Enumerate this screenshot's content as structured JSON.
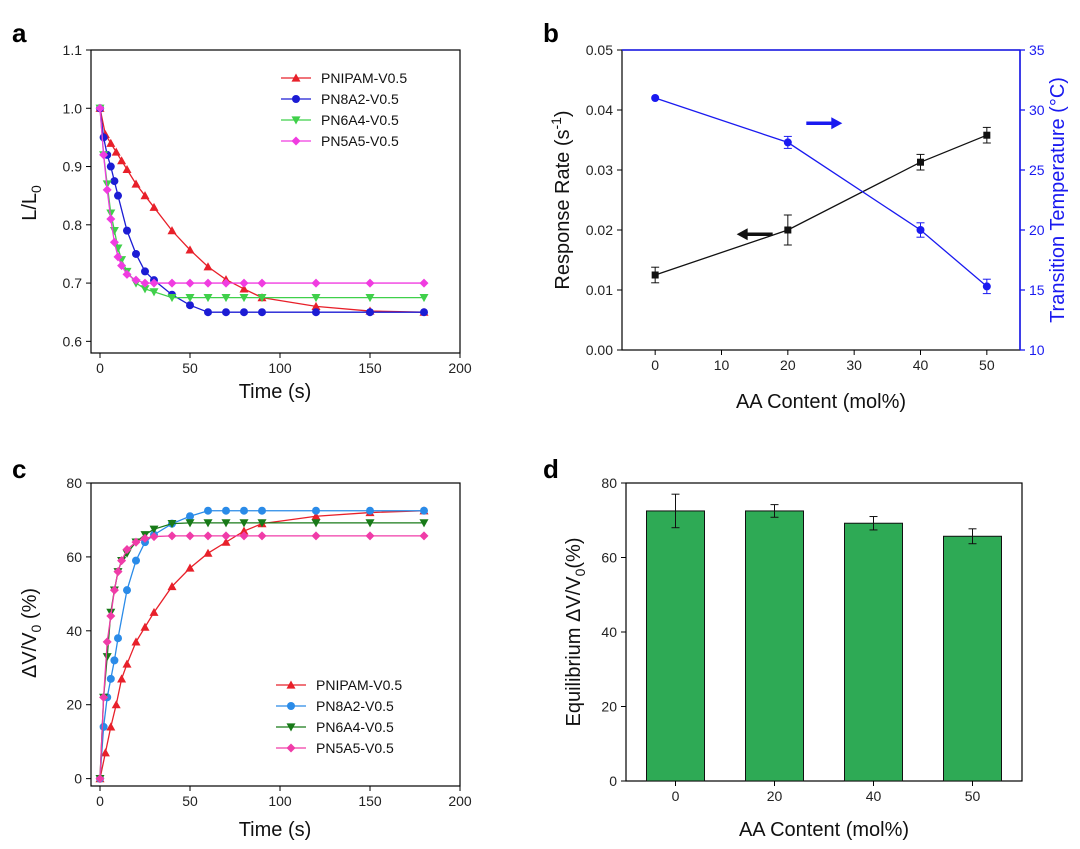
{
  "chart_data": [
    {
      "panel": "a",
      "type": "line",
      "xlabel": "Time (s)",
      "ylabel": "L/L",
      "ylabel_sub": "0",
      "xlim": [
        -5,
        200
      ],
      "ylim": [
        0.58,
        1.1
      ],
      "xticks": [
        0,
        50,
        100,
        150,
        200
      ],
      "yticks": [
        0.6,
        0.7,
        0.8,
        0.9,
        1.0,
        1.1
      ],
      "ytick_labels": [
        "0.6",
        "0.7",
        "0.8",
        "0.9",
        "1.0",
        "1.1"
      ],
      "legend_position": "top-right",
      "series": [
        {
          "name": "PNIPAM-V0.5",
          "color": "#e8202a",
          "marker": "triangle-up",
          "x": [
            0,
            3,
            6,
            9,
            12,
            15,
            20,
            25,
            30,
            40,
            50,
            60,
            70,
            80,
            90,
            120,
            150,
            180
          ],
          "y": [
            1.0,
            0.955,
            0.94,
            0.925,
            0.91,
            0.895,
            0.87,
            0.85,
            0.83,
            0.79,
            0.757,
            0.728,
            0.706,
            0.69,
            0.675,
            0.66,
            0.652,
            0.65
          ]
        },
        {
          "name": "PN8A2-V0.5",
          "color": "#1c1cd4",
          "marker": "circle",
          "x": [
            0,
            2,
            4,
            6,
            8,
            10,
            15,
            20,
            25,
            30,
            40,
            50,
            60,
            70,
            80,
            90,
            120,
            150,
            180
          ],
          "y": [
            1.0,
            0.95,
            0.92,
            0.9,
            0.875,
            0.85,
            0.79,
            0.75,
            0.72,
            0.705,
            0.68,
            0.662,
            0.65,
            0.65,
            0.65,
            0.65,
            0.65,
            0.65,
            0.65
          ]
        },
        {
          "name": "PN6A4-V0.5",
          "color": "#3fd04a",
          "marker": "triangle-down",
          "x": [
            0,
            2,
            4,
            6,
            8,
            10,
            12,
            15,
            20,
            25,
            30,
            40,
            50,
            60,
            70,
            80,
            90,
            120,
            150,
            180
          ],
          "y": [
            1.0,
            0.92,
            0.87,
            0.82,
            0.79,
            0.76,
            0.74,
            0.72,
            0.7,
            0.69,
            0.685,
            0.675,
            0.675,
            0.675,
            0.675,
            0.675,
            0.675,
            0.675,
            0.675,
            0.675
          ]
        },
        {
          "name": "PN5A5-V0.5",
          "color": "#f03ce0",
          "marker": "diamond",
          "x": [
            0,
            2,
            4,
            6,
            8,
            10,
            12,
            15,
            20,
            25,
            30,
            40,
            50,
            60,
            70,
            80,
            90,
            120,
            150,
            180
          ],
          "y": [
            1.0,
            0.92,
            0.86,
            0.81,
            0.77,
            0.745,
            0.73,
            0.715,
            0.705,
            0.7,
            0.7,
            0.7,
            0.7,
            0.7,
            0.7,
            0.7,
            0.7,
            0.7,
            0.7,
            0.7
          ]
        }
      ]
    },
    {
      "panel": "b",
      "type": "line",
      "xlabel": "AA Content (mol%)",
      "ylabel": "Response Rate (s",
      "ylabel_sup": "-1",
      "ylabel_end": ")",
      "y2label": "Transition Temperature (°C)",
      "xlim": [
        -5,
        55
      ],
      "ylim": [
        0,
        0.05
      ],
      "y2lim": [
        10,
        35
      ],
      "xticks": [
        0,
        10,
        20,
        30,
        40,
        50
      ],
      "yticks": [
        0.0,
        0.01,
        0.02,
        0.03,
        0.04,
        0.05
      ],
      "ytick_labels": [
        "0.00",
        "0.01",
        "0.02",
        "0.03",
        "0.04",
        "0.05"
      ],
      "y2ticks": [
        10,
        15,
        20,
        25,
        30,
        35
      ],
      "series": [
        {
          "name": "Response Rate",
          "axis": "left",
          "color": "#111111",
          "marker": "square",
          "x": [
            0,
            20,
            40,
            50
          ],
          "y": [
            0.0125,
            0.02,
            0.0313,
            0.0358
          ],
          "err": [
            0.0013,
            0.0025,
            0.0013,
            0.0013
          ]
        },
        {
          "name": "Transition Temperature",
          "axis": "right",
          "color": "#1a1af0",
          "marker": "circle",
          "x": [
            0,
            20,
            40,
            50
          ],
          "y": [
            31,
            27.3,
            20.0,
            15.3
          ],
          "err": [
            0,
            0.5,
            0.6,
            0.6
          ]
        }
      ],
      "arrows": [
        {
          "direction": "left",
          "color": "#111111",
          "x": 15,
          "y": 0.0193
        },
        {
          "direction": "right",
          "color": "#1a1af0",
          "x": 25.5,
          "y": 0.0378
        }
      ]
    },
    {
      "panel": "c",
      "type": "line",
      "xlabel": "Time (s)",
      "ylabel": "ΔV/V",
      "ylabel_sub": "0",
      "ylabel_end": " (%)",
      "xlim": [
        -5,
        200
      ],
      "ylim": [
        -2,
        80
      ],
      "xticks": [
        0,
        50,
        100,
        150,
        200
      ],
      "yticks": [
        0,
        20,
        40,
        60,
        80
      ],
      "ytick_labels": [
        "0",
        "20",
        "40",
        "60",
        "80"
      ],
      "legend_position": "bottom-right",
      "series": [
        {
          "name": "PNIPAM-V0.5",
          "color": "#e8202a",
          "marker": "triangle-up",
          "x": [
            0,
            3,
            6,
            9,
            12,
            15,
            20,
            25,
            30,
            40,
            50,
            60,
            70,
            80,
            90,
            120,
            150,
            180
          ],
          "y": [
            0,
            7,
            14,
            20,
            27,
            31,
            37,
            41,
            45,
            52,
            57,
            61,
            64,
            67,
            69,
            71,
            72,
            72.5
          ]
        },
        {
          "name": "PN8A2-V0.5",
          "color": "#2a8be8",
          "marker": "circle",
          "x": [
            0,
            2,
            4,
            6,
            8,
            10,
            15,
            20,
            25,
            30,
            40,
            50,
            60,
            70,
            80,
            90,
            120,
            150,
            180
          ],
          "y": [
            0,
            14,
            22,
            27,
            32,
            38,
            51,
            59,
            64,
            66,
            69,
            71,
            72.5,
            72.5,
            72.5,
            72.5,
            72.5,
            72.5,
            72.5
          ]
        },
        {
          "name": "PN6A4-V0.5",
          "color": "#187a18",
          "marker": "triangle-down",
          "x": [
            0,
            2,
            4,
            6,
            8,
            10,
            12,
            15,
            20,
            25,
            30,
            40,
            50,
            60,
            70,
            80,
            90,
            120,
            150,
            180
          ],
          "y": [
            0,
            22,
            33,
            45,
            51,
            56,
            59,
            61,
            64,
            66,
            67.5,
            69,
            69.2,
            69.2,
            69.2,
            69.2,
            69.2,
            69.2,
            69.2,
            69.2
          ]
        },
        {
          "name": "PN5A5-V0.5",
          "color": "#f03ca8",
          "marker": "diamond",
          "x": [
            0,
            2,
            4,
            6,
            8,
            10,
            12,
            15,
            20,
            25,
            30,
            40,
            50,
            60,
            70,
            80,
            90,
            120,
            150,
            180
          ],
          "y": [
            0,
            22,
            37,
            44,
            51,
            56,
            59,
            62,
            64,
            65,
            65.5,
            65.7,
            65.7,
            65.7,
            65.7,
            65.7,
            65.7,
            65.7,
            65.7,
            65.7
          ]
        }
      ]
    },
    {
      "panel": "d",
      "type": "bar",
      "xlabel": "AA Content (mol%)",
      "ylabel": "Equilibrium ΔV/V",
      "ylabel_sub": "0",
      "ylabel_end": "(%)",
      "categories": [
        "0",
        "20",
        "40",
        "50"
      ],
      "values": [
        72.5,
        72.5,
        69.2,
        65.7
      ],
      "errors": [
        4.5,
        1.7,
        1.8,
        2.0
      ],
      "ylim": [
        0,
        80
      ],
      "yticks": [
        0,
        20,
        40,
        60,
        80
      ],
      "ytick_labels": [
        "0",
        "20",
        "40",
        "60",
        "80"
      ],
      "bar_color": "#2eaa55"
    }
  ]
}
